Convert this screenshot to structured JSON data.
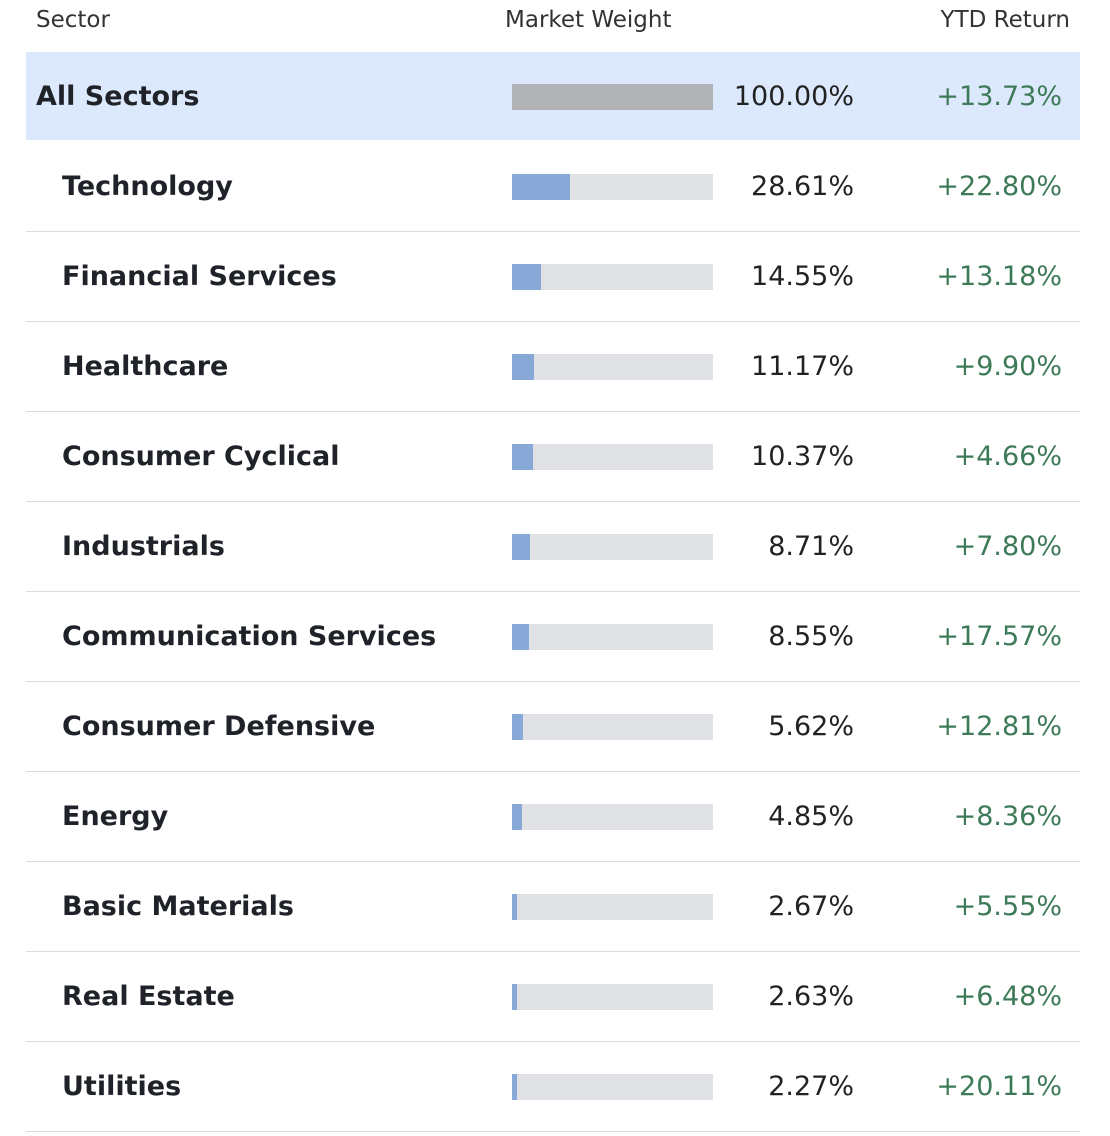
{
  "header": {
    "sector": "Sector",
    "weight": "Market Weight",
    "ytd": "YTD Return"
  },
  "rows": [
    {
      "sector": "All Sectors",
      "weight": {
        "value": 100.0,
        "label": "100.00%"
      },
      "ytd": "+13.73%"
    },
    {
      "sector": "Technology",
      "weight": {
        "value": 28.61,
        "label": "28.61%"
      },
      "ytd": "+22.80%"
    },
    {
      "sector": "Financial Services",
      "weight": {
        "value": 14.55,
        "label": "14.55%"
      },
      "ytd": "+13.18%"
    },
    {
      "sector": "Healthcare",
      "weight": {
        "value": 11.17,
        "label": "11.17%"
      },
      "ytd": "+9.90%"
    },
    {
      "sector": "Consumer Cyclical",
      "weight": {
        "value": 10.37,
        "label": "10.37%"
      },
      "ytd": "+4.66%"
    },
    {
      "sector": "Industrials",
      "weight": {
        "value": 8.71,
        "label": "8.71%"
      },
      "ytd": "+7.80%"
    },
    {
      "sector": "Communication Services",
      "weight": {
        "value": 8.55,
        "label": "8.55%"
      },
      "ytd": "+17.57%"
    },
    {
      "sector": "Consumer Defensive",
      "weight": {
        "value": 5.62,
        "label": "5.62%"
      },
      "ytd": "+12.81%"
    },
    {
      "sector": "Energy",
      "weight": {
        "value": 4.85,
        "label": "4.85%"
      },
      "ytd": "+8.36%"
    },
    {
      "sector": "Basic Materials",
      "weight": {
        "value": 2.67,
        "label": "2.67%"
      },
      "ytd": "+5.55%"
    },
    {
      "sector": "Real Estate",
      "weight": {
        "value": 2.63,
        "label": "2.63%"
      },
      "ytd": "+6.48%"
    },
    {
      "sector": "Utilities",
      "weight": {
        "value": 2.27,
        "label": "2.27%"
      },
      "ytd": "+20.11%"
    }
  ]
}
